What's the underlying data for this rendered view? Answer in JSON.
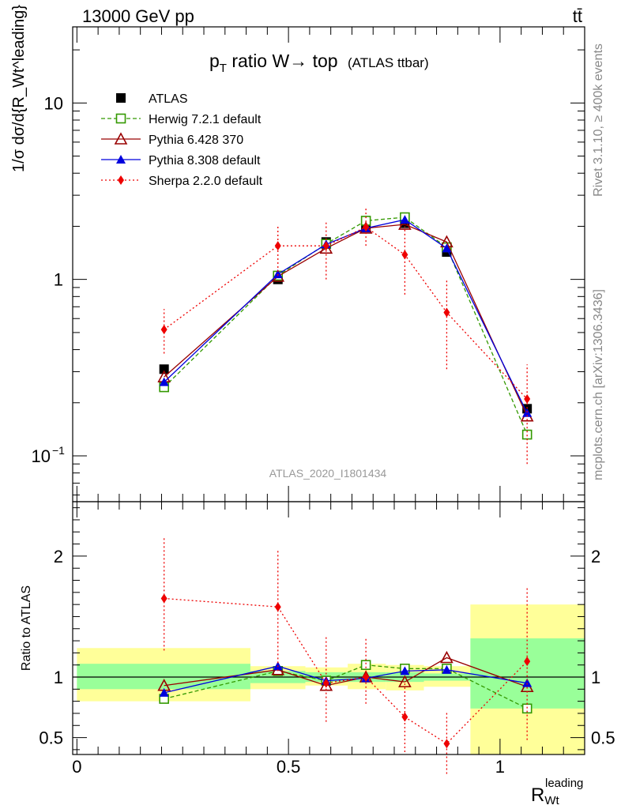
{
  "header": {
    "energy": "13000 GeV pp",
    "process": "tt̄"
  },
  "title": {
    "main": "p",
    "sub": "T",
    "rest": " ratio W→ top",
    "small": "(ATLAS ttbar)"
  },
  "side": {
    "rivet": "Rivet 3.1.10, ≥ 400k events",
    "mcplots": "mcplots.cern.ch [arXiv:1306.3436]"
  },
  "watermark": "ATLAS_2020_I1801434",
  "axes": {
    "ylabel_main": "1/σ dσ/d{R_Wt^leading}",
    "ylabel_ratio": "Ratio to ATLAS",
    "xlabel": "R",
    "xlabel_sub": "Wt",
    "xlabel_sup": "leading"
  },
  "colors": {
    "atlas": "#000000",
    "herwig": "#339900",
    "pythia6": "#990000",
    "pythia8": "#0000dd",
    "sherpa": "#ee0000",
    "band_inner": "#99ff99",
    "band_outer": "#ffff99"
  },
  "chart_data": [
    {
      "type": "scatter",
      "panel": "main",
      "y_scale": "log",
      "ylim": [
        0.055,
        27
      ],
      "xlim": [
        -0.01,
        1.2
      ],
      "yticks": [
        {
          "value": 0.1,
          "label": "10",
          "sup": "−1"
        },
        {
          "value": 1,
          "label": "1",
          "sup": ""
        },
        {
          "value": 10,
          "label": "10",
          "sup": ""
        }
      ],
      "x": [
        0.206,
        0.475,
        0.589,
        0.683,
        0.775,
        0.874,
        1.064
      ],
      "bin_edges": [
        0,
        0.41,
        0.54,
        0.64,
        0.73,
        0.82,
        0.93,
        1.2
      ],
      "series": [
        {
          "name": "ATLAS",
          "key": "atlas",
          "marker": "square-filled",
          "line": "none",
          "values": [
            0.31,
            1.0,
            1.63,
            1.97,
            2.08,
            1.43,
            0.185
          ]
        },
        {
          "name": "Herwig 7.2.1 default",
          "key": "herwig",
          "marker": "square-open",
          "line": "dashed",
          "values": [
            0.245,
            1.05,
            1.59,
            2.15,
            2.25,
            1.52,
            0.132
          ]
        },
        {
          "name": "Pythia 6.428 370",
          "key": "pythia6",
          "marker": "triangle-open",
          "line": "solid",
          "values": [
            0.28,
            1.04,
            1.5,
            1.95,
            2.05,
            1.63,
            0.168
          ]
        },
        {
          "name": "Pythia 8.308 default",
          "key": "pythia8",
          "marker": "triangle-filled",
          "line": "solid",
          "values": [
            0.262,
            1.07,
            1.58,
            1.95,
            2.18,
            1.5,
            0.175
          ]
        },
        {
          "name": "Sherpa 2.2.0 default",
          "key": "sherpa",
          "marker": "diamond-filled",
          "line": "dotted",
          "values": [
            0.52,
            1.55,
            1.55,
            1.98,
            1.38,
            0.65,
            0.21
          ],
          "err_low": [
            0.38,
            1.05,
            1.0,
            1.55,
            0.82,
            0.31,
            0.09
          ],
          "err_high": [
            0.68,
            2.05,
            2.1,
            2.55,
            2.0,
            1.0,
            0.33
          ]
        }
      ]
    },
    {
      "type": "scatter",
      "panel": "ratio",
      "ylim": [
        0.36,
        2.45
      ],
      "xlim": [
        -0.01,
        1.2
      ],
      "yticks": [
        {
          "value": 0.5,
          "label": "0.5"
        },
        {
          "value": 1,
          "label": "1"
        },
        {
          "value": 2,
          "label": "2"
        }
      ],
      "xticks": [
        {
          "value": 0,
          "label": "0"
        },
        {
          "value": 0.5,
          "label": "0.5"
        },
        {
          "value": 1,
          "label": "1"
        }
      ],
      "x": [
        0.206,
        0.475,
        0.589,
        0.683,
        0.775,
        0.874,
        1.064
      ],
      "bands": {
        "inner": [
          [
            0.9,
            1.11
          ],
          [
            0.95,
            1.05
          ],
          [
            0.96,
            1.04
          ],
          [
            0.96,
            1.04
          ],
          [
            0.96,
            1.04
          ],
          [
            0.97,
            1.03
          ],
          [
            0.74,
            1.32
          ]
        ],
        "outer": [
          [
            0.8,
            1.24
          ],
          [
            0.9,
            1.09
          ],
          [
            0.93,
            1.08
          ],
          [
            0.9,
            1.11
          ],
          [
            0.89,
            1.1
          ],
          [
            0.92,
            1.09
          ],
          [
            0.36,
            1.6
          ]
        ]
      },
      "series": [
        {
          "name": "Herwig 7.2.1 default",
          "key": "herwig",
          "values": [
            0.82,
            1.05,
            0.97,
            1.1,
            1.07,
            1.07,
            0.74
          ]
        },
        {
          "name": "Pythia 6.428 370",
          "key": "pythia6",
          "values": [
            0.93,
            1.06,
            0.93,
            1.0,
            0.96,
            1.16,
            0.92
          ]
        },
        {
          "name": "Pythia 8.308 default",
          "key": "pythia8",
          "values": [
            0.87,
            1.09,
            0.97,
            0.99,
            1.05,
            1.06,
            0.95
          ]
        },
        {
          "name": "Sherpa 2.2.0 default",
          "key": "sherpa",
          "values": [
            1.65,
            1.58,
            0.95,
            1.0,
            0.67,
            0.45,
            1.13
          ],
          "err_low": [
            1.22,
            1.05,
            0.63,
            0.78,
            0.38,
            0.2,
            0.48
          ],
          "err_high": [
            2.15,
            2.05,
            1.33,
            1.32,
            0.96,
            0.72,
            1.75
          ]
        }
      ]
    }
  ]
}
